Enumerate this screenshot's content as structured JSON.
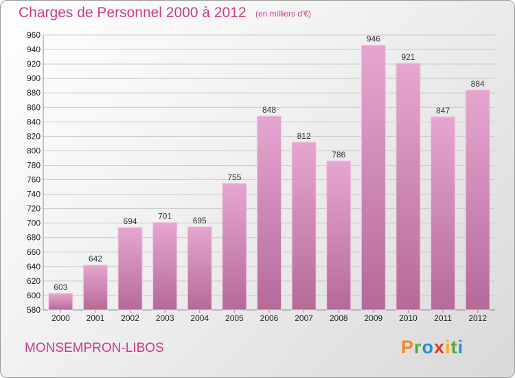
{
  "header": {
    "title": "Charges de Personnel 2000 à 2012",
    "subtitle": "(en milliers d'€)"
  },
  "footer": {
    "commune": "MONSEMPRON-LIBOS",
    "logo": {
      "letters": [
        "P",
        "r",
        "o",
        "x",
        "i",
        "t",
        "i"
      ],
      "colors": [
        "#f08a1c",
        "#5aa732",
        "#1f8fd6",
        "#e8352a",
        "#f0b020",
        "#5aa732",
        "#1f8fd6"
      ]
    }
  },
  "colors": {
    "bar_light": "#e6a6cf",
    "bar_dark": "#b56a98",
    "grid": "#c8c8c8",
    "accent": "#cc3a88"
  },
  "chart_data": {
    "type": "bar",
    "title": "Charges de Personnel 2000 à 2012",
    "subtitle": "(en milliers d'€)",
    "categories": [
      "2000",
      "2001",
      "2002",
      "2003",
      "2004",
      "2005",
      "2006",
      "2007",
      "2008",
      "2009",
      "2010",
      "2011",
      "2012"
    ],
    "values": [
      603,
      642,
      694,
      701,
      695,
      755,
      848,
      812,
      786,
      946,
      921,
      847,
      884
    ],
    "ylim": [
      580,
      960
    ],
    "yticks": [
      580,
      600,
      620,
      640,
      660,
      680,
      700,
      720,
      740,
      760,
      780,
      800,
      820,
      840,
      860,
      880,
      900,
      920,
      940,
      960
    ],
    "grid": true,
    "data_labels": true
  }
}
